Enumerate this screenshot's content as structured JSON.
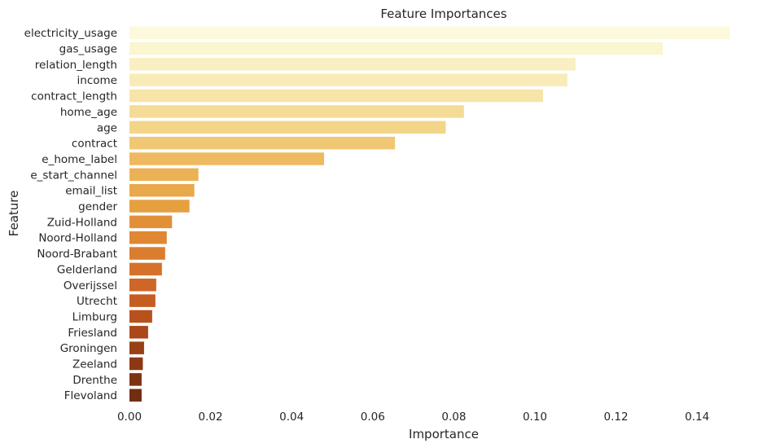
{
  "chart_data": {
    "type": "bar",
    "orientation": "horizontal",
    "title": "Feature Importances",
    "xlabel": "Importance",
    "ylabel": "Feature",
    "xlim": [
      0.0,
      0.148
    ],
    "xticks": [
      "0.00",
      "0.02",
      "0.04",
      "0.06",
      "0.08",
      "0.10",
      "0.12",
      "0.14"
    ],
    "xtick_values": [
      0.0,
      0.02,
      0.04,
      0.06,
      0.08,
      0.1,
      0.12,
      0.14
    ],
    "grid": false,
    "palette": "YlOrBr",
    "categories": [
      "electricity_usage",
      "gas_usage",
      "relation_length",
      "income",
      "contract_length",
      "home_age",
      "age",
      "contract",
      "e_home_label",
      "e_start_channel",
      "email_list",
      "gender",
      "Zuid-Holland",
      "Noord-Holland",
      "Noord-Brabant",
      "Gelderland",
      "Overijssel",
      "Utrecht",
      "Limburg",
      "Friesland",
      "Groningen",
      "Zeeland",
      "Drenthe",
      "Flevoland"
    ],
    "values": [
      0.148,
      0.1315,
      0.11,
      0.108,
      0.102,
      0.0825,
      0.078,
      0.0655,
      0.048,
      0.017,
      0.016,
      0.0148,
      0.0105,
      0.0092,
      0.0088,
      0.008,
      0.0066,
      0.0064,
      0.0056,
      0.0046,
      0.0036,
      0.0033,
      0.003,
      0.003
    ],
    "colors": [
      "#fcf9dc",
      "#fbf5d0",
      "#f9efc2",
      "#f8ebb8",
      "#f6e4a8",
      "#f4dc97",
      "#f3d58a",
      "#f0c774",
      "#eeb960",
      "#ebb255",
      "#e9a84b",
      "#e6a040",
      "#e29038",
      "#df8733",
      "#db7d2f",
      "#d5712a",
      "#cd6626",
      "#c55d22",
      "#b8521d",
      "#aa4819",
      "#9a4016",
      "#8c3813",
      "#7e3211",
      "#732d10"
    ]
  }
}
